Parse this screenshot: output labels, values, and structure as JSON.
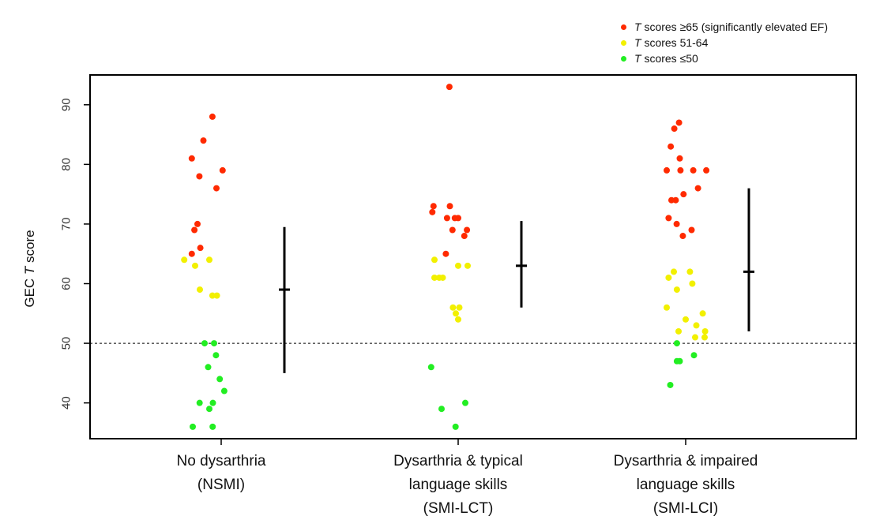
{
  "chart_data": {
    "type": "scatter",
    "ylabel_prefix": "GEC ",
    "ylabel_italic": "T",
    "ylabel_suffix": " score",
    "ylim": [
      34,
      95
    ],
    "yticks": [
      40,
      50,
      60,
      70,
      80,
      90
    ],
    "reference_line": 50,
    "legend_position": "top-right",
    "colors": {
      "high": "#ff2a00",
      "mid": "#f2f000",
      "low": "#22ee22",
      "axis": "#000000"
    },
    "legend": [
      {
        "key": "high",
        "italic": "T",
        "text": " scores ≥65 (significantly elevated EF)"
      },
      {
        "key": "mid",
        "italic": "T",
        "text": " scores 51-64"
      },
      {
        "key": "low",
        "italic": "T",
        "text": " scores ≤50"
      }
    ],
    "groups": [
      {
        "label_lines": [
          "No dysarthria",
          "(NSMI)"
        ],
        "summary": {
          "center": 59,
          "low": 45,
          "high": 69.5
        },
        "points": [
          {
            "j": -0.37,
            "y": 88
          },
          {
            "j": -0.75,
            "y": 84
          },
          {
            "j": -1.24,
            "y": 81
          },
          {
            "j": 0.06,
            "y": 79
          },
          {
            "j": -0.92,
            "y": 78
          },
          {
            "j": -0.2,
            "y": 76
          },
          {
            "j": -1.0,
            "y": 70
          },
          {
            "j": -1.13,
            "y": 69
          },
          {
            "j": -0.88,
            "y": 66
          },
          {
            "j": -1.24,
            "y": 65
          },
          {
            "j": -1.56,
            "y": 64
          },
          {
            "j": -0.5,
            "y": 64
          },
          {
            "j": -1.1,
            "y": 63
          },
          {
            "j": -0.9,
            "y": 59
          },
          {
            "j": -0.37,
            "y": 58
          },
          {
            "j": -0.18,
            "y": 58
          },
          {
            "j": -0.7,
            "y": 50
          },
          {
            "j": -0.3,
            "y": 50
          },
          {
            "j": -0.22,
            "y": 48
          },
          {
            "j": -0.55,
            "y": 46
          },
          {
            "j": -0.06,
            "y": 44
          },
          {
            "j": 0.13,
            "y": 42
          },
          {
            "j": -0.91,
            "y": 40
          },
          {
            "j": -0.35,
            "y": 40
          },
          {
            "j": -0.5,
            "y": 39
          },
          {
            "j": -1.2,
            "y": 36
          },
          {
            "j": -0.36,
            "y": 36
          }
        ]
      },
      {
        "label_lines": [
          "Dysarthria & typical",
          "language skills",
          "(SMI-LCT)"
        ],
        "summary": {
          "center": 63,
          "low": 56,
          "high": 70.5
        },
        "points": [
          {
            "j": -0.37,
            "y": 93
          },
          {
            "j": -1.04,
            "y": 73
          },
          {
            "j": -0.35,
            "y": 73
          },
          {
            "j": -1.09,
            "y": 72
          },
          {
            "j": -0.47,
            "y": 71
          },
          {
            "j": -0.14,
            "y": 71
          },
          {
            "j": 0.0,
            "y": 71
          },
          {
            "j": -0.24,
            "y": 69
          },
          {
            "j": 0.37,
            "y": 69
          },
          {
            "j": 0.26,
            "y": 68
          },
          {
            "j": -0.52,
            "y": 65
          },
          {
            "j": -1.0,
            "y": 64
          },
          {
            "j": -0.8,
            "y": 61
          },
          {
            "j": -1.0,
            "y": 61
          },
          {
            "j": -0.65,
            "y": 61
          },
          {
            "j": 0.0,
            "y": 63
          },
          {
            "j": 0.4,
            "y": 63
          },
          {
            "j": -0.22,
            "y": 56
          },
          {
            "j": 0.05,
            "y": 56
          },
          {
            "j": -0.1,
            "y": 55
          },
          {
            "j": 0.0,
            "y": 54
          },
          {
            "j": -1.14,
            "y": 46
          },
          {
            "j": -0.7,
            "y": 39
          },
          {
            "j": 0.3,
            "y": 40
          },
          {
            "j": -0.11,
            "y": 36
          }
        ]
      },
      {
        "label_lines": [
          "Dysarthria & impaired",
          "language skills",
          "(SMI-LCI)"
        ],
        "summary": {
          "center": 62,
          "low": 52,
          "high": 76
        },
        "points": [
          {
            "j": -0.28,
            "y": 87
          },
          {
            "j": -0.48,
            "y": 86
          },
          {
            "j": -0.63,
            "y": 83
          },
          {
            "j": -0.25,
            "y": 81
          },
          {
            "j": -0.8,
            "y": 79
          },
          {
            "j": -0.22,
            "y": 79
          },
          {
            "j": 0.32,
            "y": 79
          },
          {
            "j": 0.87,
            "y": 79
          },
          {
            "j": 0.52,
            "y": 76
          },
          {
            "j": -0.09,
            "y": 75
          },
          {
            "j": -0.6,
            "y": 74
          },
          {
            "j": -0.42,
            "y": 74
          },
          {
            "j": -0.72,
            "y": 71
          },
          {
            "j": -0.38,
            "y": 70
          },
          {
            "j": 0.25,
            "y": 69
          },
          {
            "j": -0.12,
            "y": 68
          },
          {
            "j": -0.72,
            "y": 61
          },
          {
            "j": -0.5,
            "y": 62
          },
          {
            "j": 0.18,
            "y": 62
          },
          {
            "j": -0.37,
            "y": 59
          },
          {
            "j": 0.28,
            "y": 60
          },
          {
            "j": -0.8,
            "y": 56
          },
          {
            "j": 0.72,
            "y": 55
          },
          {
            "j": 0.0,
            "y": 54
          },
          {
            "j": 0.45,
            "y": 53
          },
          {
            "j": -0.3,
            "y": 52
          },
          {
            "j": 0.82,
            "y": 52
          },
          {
            "j": 0.4,
            "y": 51
          },
          {
            "j": 0.8,
            "y": 51
          },
          {
            "j": -0.37,
            "y": 50
          },
          {
            "j": -0.37,
            "y": 47
          },
          {
            "j": -0.25,
            "y": 47
          },
          {
            "j": 0.35,
            "y": 48
          },
          {
            "j": -0.65,
            "y": 43
          }
        ]
      }
    ]
  }
}
